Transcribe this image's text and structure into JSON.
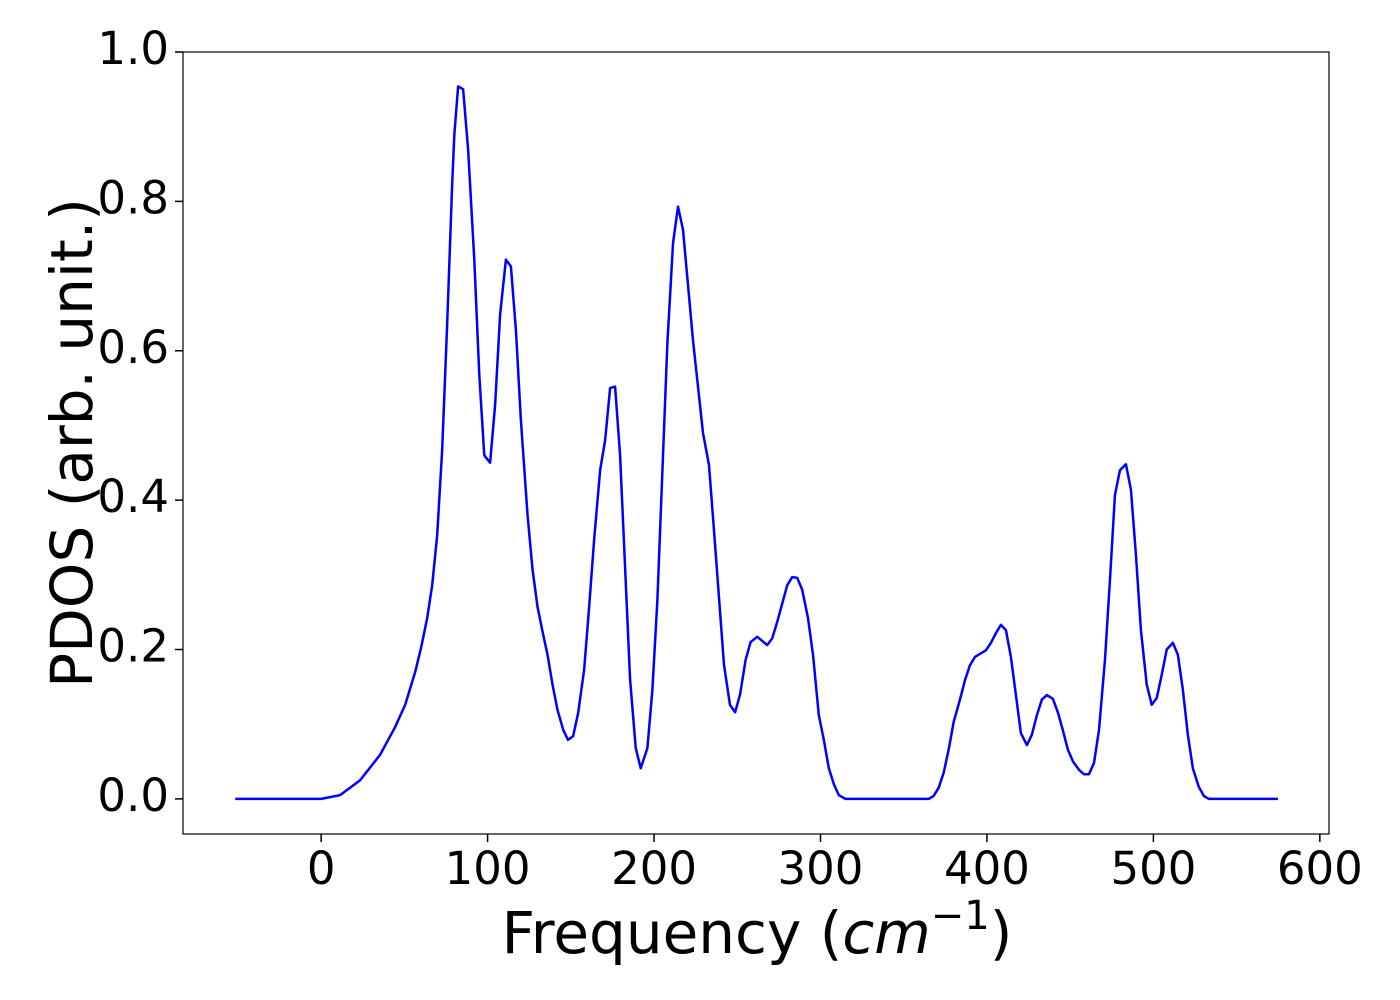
{
  "chart_data": {
    "type": "line",
    "ylabel": "PDOS (arb. unit.)",
    "xlabel": [
      "Frequency (",
      "cm",
      "−1",
      ")"
    ],
    "x": [
      -51.6,
      -25,
      0,
      11.4,
      23.4,
      35.4,
      44.4,
      50.5,
      56.5,
      60,
      63.7,
      66.7,
      69.7,
      72.7,
      75.7,
      78.7,
      80,
      82.3,
      85.3,
      88.3,
      92,
      95,
      98,
      101.5,
      104.5,
      107.5,
      111,
      114,
      117,
      120,
      124,
      127,
      130,
      133,
      136,
      139,
      142,
      145.5,
      148.3,
      151.4,
      154.4,
      158,
      161,
      164,
      167.6,
      170.6,
      173.6,
      176.6,
      179.6,
      185.6,
      189,
      192,
      196,
      199,
      202,
      208,
      211.4,
      214.4,
      217.4,
      223.4,
      229.4,
      233,
      236,
      242,
      245.6,
      248.7,
      251.7,
      255,
      258,
      262,
      268,
      271,
      274,
      280,
      283,
      286,
      289,
      292.5,
      295.5,
      299,
      302,
      305,
      308,
      311,
      315,
      340,
      365,
      368,
      371,
      374,
      377,
      380,
      383.8,
      386.8,
      389.8,
      392.8,
      396.4,
      399.4,
      402.4,
      405.4,
      408.4,
      411.4,
      414.4,
      417.4,
      420.4,
      424,
      427,
      430,
      433,
      436,
      439.6,
      442.6,
      445.6,
      448.6,
      451.7,
      455.3,
      458.3,
      461.3,
      464.3,
      467.3,
      470.9,
      473.9,
      476.9,
      479.9,
      483.5,
      486.5,
      489.5,
      492.5,
      496,
      499,
      502,
      505,
      508,
      511.7,
      514.7,
      517.7,
      520.7,
      523.7,
      527.3,
      530.3,
      533.3,
      574.8
    ],
    "series": [
      {
        "color": "#0000ff",
        "values": [
          0,
          0,
          0,
          0.005,
          0.025,
          0.059,
          0.096,
          0.126,
          0.17,
          0.202,
          0.242,
          0.286,
          0.353,
          0.467,
          0.635,
          0.822,
          0.889,
          0.954,
          0.95,
          0.869,
          0.722,
          0.568,
          0.46,
          0.45,
          0.527,
          0.648,
          0.722,
          0.713,
          0.628,
          0.507,
          0.38,
          0.307,
          0.257,
          0.224,
          0.193,
          0.153,
          0.119,
          0.092,
          0.079,
          0.084,
          0.115,
          0.173,
          0.257,
          0.347,
          0.44,
          0.48,
          0.55,
          0.552,
          0.46,
          0.16,
          0.068,
          0.041,
          0.068,
          0.146,
          0.266,
          0.61,
          0.744,
          0.793,
          0.762,
          0.614,
          0.49,
          0.447,
          0.36,
          0.18,
          0.126,
          0.116,
          0.14,
          0.186,
          0.21,
          0.217,
          0.206,
          0.215,
          0.237,
          0.286,
          0.297,
          0.296,
          0.28,
          0.242,
          0.193,
          0.112,
          0.079,
          0.041,
          0.02,
          0.005,
          0,
          0,
          0,
          0.004,
          0.015,
          0.035,
          0.066,
          0.103,
          0.133,
          0.159,
          0.179,
          0.19,
          0.195,
          0.199,
          0.209,
          0.222,
          0.233,
          0.226,
          0.19,
          0.139,
          0.088,
          0.072,
          0.086,
          0.112,
          0.133,
          0.139,
          0.134,
          0.116,
          0.092,
          0.066,
          0.05,
          0.039,
          0.033,
          0.033,
          0.048,
          0.092,
          0.186,
          0.293,
          0.407,
          0.44,
          0.448,
          0.414,
          0.327,
          0.226,
          0.153,
          0.126,
          0.135,
          0.166,
          0.2,
          0.209,
          0.193,
          0.146,
          0.086,
          0.041,
          0.016,
          0.004,
          0,
          0
        ]
      }
    ],
    "xlim": [
      -83,
      605.5
    ],
    "ylim": [
      -0.047,
      1.0
    ],
    "xticks": [
      0,
      100,
      200,
      300,
      400,
      500,
      600
    ],
    "yticks": [
      {
        "value": 0,
        "label": "0.0"
      },
      {
        "value": 0.2,
        "label": "0.2"
      },
      {
        "value": 0.4,
        "label": "0.4"
      },
      {
        "value": 0.6,
        "label": "0.6"
      },
      {
        "value": 0.8,
        "label": "0.8"
      },
      {
        "value": 1.0,
        "label": "1.0"
      }
    ],
    "grid": false
  }
}
